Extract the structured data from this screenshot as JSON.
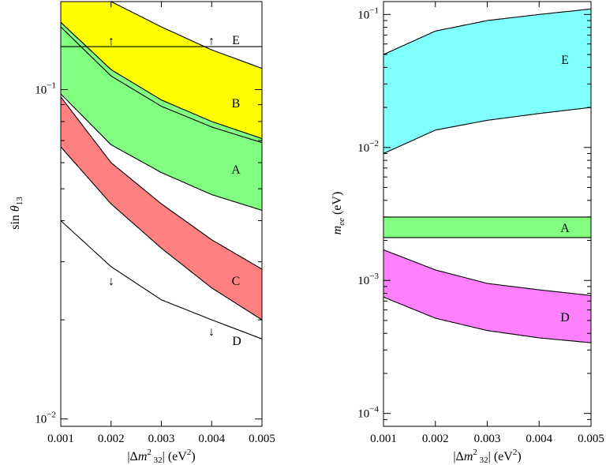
{
  "chart_data": [
    {
      "type": "area",
      "panel": "left",
      "xlabel": "|Δm²₃₂| (eV²)",
      "ylabel": "sin θ₁₃",
      "yscale": "log",
      "xlim": [
        0.001,
        0.005
      ],
      "ylim": [
        0.0095,
        0.185
      ],
      "x_ticks": [
        "0.001",
        "0.002",
        "0.003",
        "0.004",
        "0.005"
      ],
      "y_ticks": [
        {
          "label": "10⁻¹",
          "base": "10",
          "exp": "−1",
          "value": 0.1
        },
        {
          "label": "10⁻²",
          "base": "10",
          "exp": "−2",
          "value": 0.01
        }
      ],
      "x": [
        0.001,
        0.002,
        0.003,
        0.004,
        0.005
      ],
      "bands": [
        {
          "name": "B",
          "color": "#ffff00",
          "lower": [
            0.155,
            0.11,
            0.089,
            0.077,
            0.069
          ],
          "upper": [
            0.185,
            0.185,
            0.155,
            0.132,
            0.116
          ]
        },
        {
          "name": "A",
          "color": "#80ff80",
          "lower": [
            0.097,
            0.068,
            0.056,
            0.048,
            0.043
          ],
          "upper": [
            0.16,
            0.115,
            0.093,
            0.08,
            0.071
          ]
        },
        {
          "name": "C",
          "color": "#ff8080",
          "lower": [
            0.067,
            0.045,
            0.033,
            0.025,
            0.02
          ],
          "upper": [
            0.095,
            0.06,
            0.045,
            0.035,
            0.0285
          ]
        }
      ],
      "lines": [
        {
          "name": "inner",
          "values": [
            0.155,
            0.11,
            0.089,
            0.077,
            0.069
          ]
        },
        {
          "name": "D",
          "values": [
            0.04,
            0.029,
            0.023,
            0.02,
            0.0175
          ]
        },
        {
          "name": "E",
          "constant": 0.135
        }
      ],
      "labels": [
        {
          "text": "E",
          "x": 0.0045,
          "y": 0.135
        },
        {
          "text": "B",
          "x": 0.0045,
          "y": 0.087
        },
        {
          "text": "A",
          "x": 0.0045,
          "y": 0.058
        },
        {
          "text": "C",
          "x": 0.0045,
          "y": 0.0255
        },
        {
          "text": "D",
          "x": 0.0045,
          "y": 0.0171
        }
      ],
      "arrows": [
        {
          "direction": "up",
          "glyph": "↑",
          "x": 0.002,
          "y": 0.141
        },
        {
          "direction": "up",
          "glyph": "↑",
          "x": 0.0039,
          "y": 0.141
        },
        {
          "direction": "down",
          "glyph": "↓",
          "x": 0.002,
          "y": 0.0272
        },
        {
          "direction": "down",
          "glyph": "↓",
          "x": 0.0039,
          "y": 0.0181
        }
      ]
    },
    {
      "type": "area",
      "panel": "right",
      "xlabel": "|Δm²₃₂| (eV²)",
      "ylabel": "mee (eV)",
      "yscale": "log",
      "xlim": [
        0.001,
        0.005
      ],
      "ylim": [
        8e-05,
        0.125
      ],
      "x_ticks": [
        "0.001",
        "0.002",
        "0.003",
        "0.004",
        "0.005"
      ],
      "y_ticks": [
        {
          "label": "10⁻¹",
          "base": "10",
          "exp": "−1",
          "value": 0.1
        },
        {
          "label": "10⁻²",
          "base": "10",
          "exp": "−2",
          "value": 0.01
        },
        {
          "label": "10⁻³",
          "base": "10",
          "exp": "−3",
          "value": 0.001
        },
        {
          "label": "10⁻⁴",
          "base": "10",
          "exp": "−4",
          "value": 0.0001
        }
      ],
      "x": [
        0.001,
        0.002,
        0.003,
        0.004,
        0.005
      ],
      "bands": [
        {
          "name": "E",
          "color": "#80ffff",
          "lower": [
            0.009,
            0.0135,
            0.016,
            0.018,
            0.02
          ],
          "upper": [
            0.05,
            0.075,
            0.09,
            0.1,
            0.11
          ]
        },
        {
          "name": "A",
          "color": "#80ff80",
          "lower": [
            0.0021,
            0.0021,
            0.0021,
            0.0021,
            0.0021
          ],
          "upper": [
            0.003,
            0.003,
            0.003,
            0.003,
            0.003
          ]
        },
        {
          "name": "D",
          "color": "#ff80ff",
          "lower": [
            0.00075,
            0.00052,
            0.00042,
            0.00037,
            0.00034
          ],
          "upper": [
            0.0017,
            0.0012,
            0.00095,
            0.00085,
            0.00077
          ]
        }
      ],
      "lines": [],
      "labels": [
        {
          "text": "E",
          "x": 0.0045,
          "y": 0.03
        },
        {
          "text": "A",
          "x": 0.0045,
          "y": 0.0025
        },
        {
          "text": "D",
          "x": 0.0045,
          "y": 0.00052
        }
      ],
      "arrows": []
    }
  ]
}
